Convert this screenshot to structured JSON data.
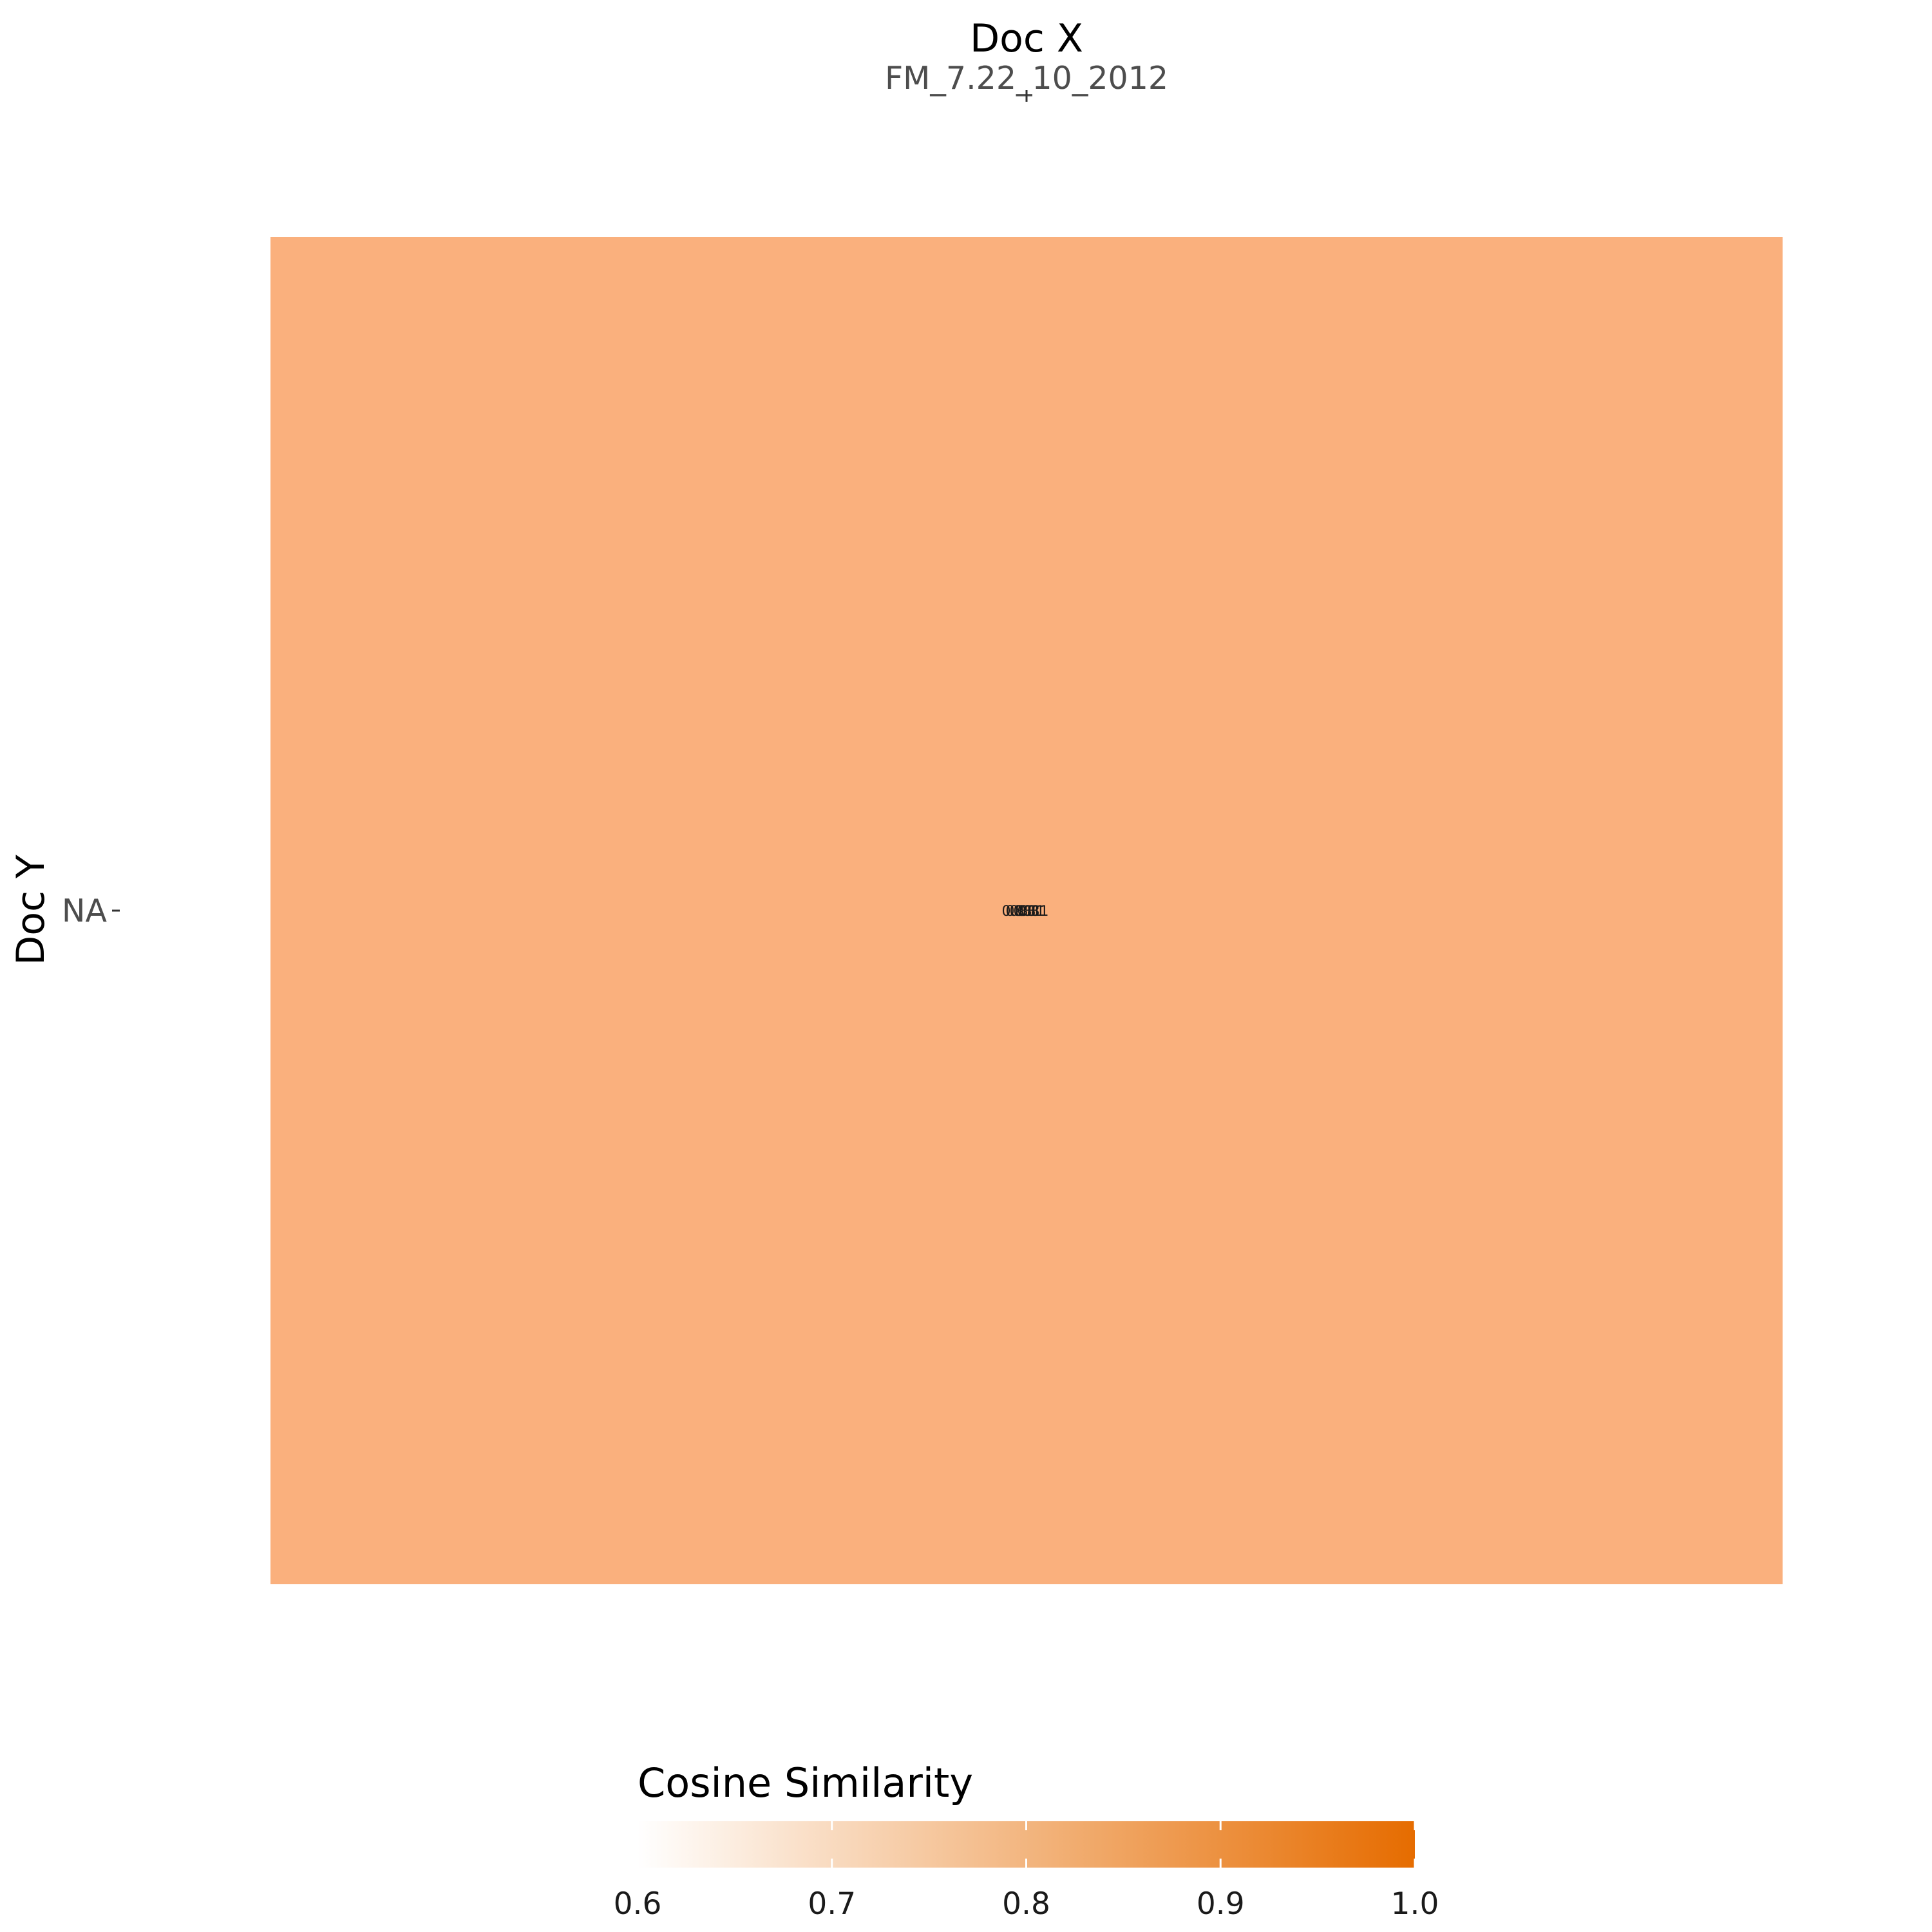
{
  "chart_data": {
    "type": "heatmap",
    "xlabel": "Doc X",
    "ylabel": "Doc Y",
    "x_categories": [
      "FM_7.22_10_2012"
    ],
    "y_categories": [
      "NA"
    ],
    "cells": [
      {
        "x": "FM_7.22_10_2012",
        "y": "NA",
        "value": 0.81,
        "labels": [
          "0.81",
          "0.81",
          "0.81",
          "0.81",
          "0.81"
        ]
      }
    ],
    "x_axis_position": "top",
    "legend": {
      "title": "Cosine Similarity",
      "position": "bottom",
      "range": [
        0.6,
        1.0
      ],
      "ticks": [
        "0.6",
        "0.7",
        "0.8",
        "0.9",
        "1.0"
      ],
      "colors": {
        "low": "#ffffff",
        "high": "#e66c00"
      }
    },
    "cell_color": "#fab07d",
    "grid": false
  }
}
